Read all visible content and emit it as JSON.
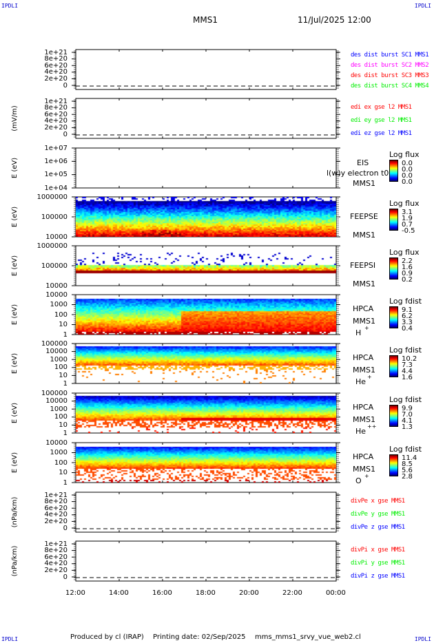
{
  "header": {
    "corner_left": "IPDLI",
    "corner_right": "IPDLI",
    "title": "MMS1",
    "datetime": "11/Jul/2025 12:00"
  },
  "footer": {
    "produced": "Produced by cl (IRAP)",
    "printing": "Printing date: 02/Sep/2025",
    "file": "mms_mms1_srvy_vue_web2.cl",
    "corner_left": "IPDLI",
    "corner_right": "IPDLI"
  },
  "chart_data": {
    "type": "heatmap",
    "x_ticks": [
      "12:00",
      "14:00",
      "16:00",
      "18:00",
      "20:00",
      "22:00",
      "00:00"
    ],
    "panels": [
      {
        "kind": "line",
        "ylabel": "",
        "yticks": [
          "1e+21",
          "8e+20",
          "6e+20",
          "4e+20",
          "2e+20",
          "0"
        ],
        "legend": [
          {
            "text": "des dist burst SC1 MMS1",
            "color": "#0000ff"
          },
          {
            "text": "des dist burst SC2 MMS2",
            "color": "#ff00ff"
          },
          {
            "text": "des dist burst SC3 MMS3",
            "color": "#ff0000"
          },
          {
            "text": "des dist burst SC4 MMS4",
            "color": "#00ee00"
          }
        ]
      },
      {
        "kind": "line",
        "ylabel": "(mV/m)",
        "yticks": [
          "1e+21",
          "8e+20",
          "6e+20",
          "4e+20",
          "2e+20",
          "0"
        ],
        "legend": [
          {
            "text": "edi ex gse l2 MMS1",
            "color": "#ff0000"
          },
          {
            "text": "edi ey gse l2 MMS1",
            "color": "#00ee00"
          },
          {
            "text": "edi ez gse l2 MMS1",
            "color": "#0000ff"
          }
        ]
      },
      {
        "kind": "spec",
        "ylabel": "E (eV)",
        "yticks": [
          "1e+07",
          "1e+06",
          "1e+05",
          "1e+04"
        ],
        "inst": "EIS",
        "extra": "l(w)y electron t0",
        "sc": "MMS1",
        "species": "",
        "cbar_title": "Log flux",
        "cbar": [
          "0.0",
          "0.0",
          "0.0",
          "0.0"
        ],
        "empty": true
      },
      {
        "kind": "spec",
        "ylabel": "E (eV)",
        "yticks": [
          "1000000",
          "100000",
          "10000"
        ],
        "inst": "FEEPSE",
        "sc": "MMS1",
        "species": "",
        "cbar_title": "Log flux",
        "cbar": [
          "3.1",
          "1.9",
          "0.7",
          "-0.5"
        ]
      },
      {
        "kind": "spec",
        "ylabel": "E (eV)",
        "yticks": [
          "1000000",
          "100000",
          "10000"
        ],
        "inst": "FEEPSI",
        "sc": "MMS1",
        "species": "",
        "cbar_title": "Log flux",
        "cbar": [
          "2.2",
          "1.6",
          "0.9",
          "0.2"
        ]
      },
      {
        "kind": "spec",
        "ylabel": "E (eV)",
        "yticks": [
          "10000",
          "1000",
          "100",
          "10",
          "1"
        ],
        "inst": "HPCA",
        "sc": "MMS1",
        "species": "H",
        "sup": "+",
        "cbar_title": "Log fdist",
        "cbar": [
          "9.1",
          "6.2",
          "3.3",
          "0.4"
        ]
      },
      {
        "kind": "spec",
        "ylabel": "E (eV)",
        "yticks": [
          "100000",
          "10000",
          "1000",
          "100",
          "10",
          "1"
        ],
        "inst": "HPCA",
        "sc": "MMS1",
        "species": "He",
        "sup": "+",
        "cbar_title": "Log fdist",
        "cbar": [
          "10.2",
          "7.3",
          "4.4",
          "1.6"
        ]
      },
      {
        "kind": "spec",
        "ylabel": "E (eV)",
        "yticks": [
          "100000",
          "10000",
          "1000",
          "100",
          "10",
          "1"
        ],
        "inst": "HPCA",
        "sc": "MMS1",
        "species": "He",
        "sup": "++",
        "cbar_title": "Log fdist",
        "cbar": [
          "9.9",
          "7.0",
          "4.1",
          "1.3"
        ]
      },
      {
        "kind": "spec",
        "ylabel": "E (eV)",
        "yticks": [
          "10000",
          "1000",
          "100",
          "10",
          "1"
        ],
        "inst": "HPCA",
        "sc": "MMS1",
        "species": "O",
        "sup": "+",
        "cbar_title": "Log fdist",
        "cbar": [
          "11.4",
          "8.5",
          "5.6",
          "2.8"
        ]
      },
      {
        "kind": "line",
        "ylabel": "(nPa/km)",
        "yticks": [
          "1e+21",
          "8e+20",
          "6e+20",
          "4e+20",
          "2e+20",
          "0"
        ],
        "legend": [
          {
            "text": "divPe x gse MMS1",
            "color": "#ff0000"
          },
          {
            "text": "divPe y gse MMS1",
            "color": "#00ee00"
          },
          {
            "text": "divPe z gse MMS1",
            "color": "#0000ff"
          }
        ]
      },
      {
        "kind": "line",
        "ylabel": "(nPa/km)",
        "yticks": [
          "1e+21",
          "8e+20",
          "6e+20",
          "4e+20",
          "2e+20",
          "0"
        ],
        "legend": [
          {
            "text": "divPi x gse MMS1",
            "color": "#ff0000"
          },
          {
            "text": "divPi y gse MMS1",
            "color": "#00ee00"
          },
          {
            "text": "divPi z gse MMS1",
            "color": "#0000ff"
          }
        ]
      }
    ]
  }
}
